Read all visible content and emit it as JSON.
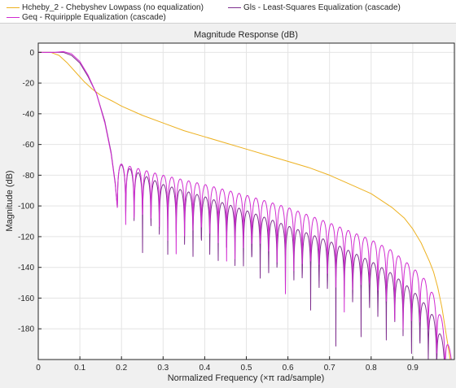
{
  "legend": {
    "items": [
      {
        "label": "Hcheby_2 - Chebyshev Lowpass (no equalization)",
        "color": "#EDB120"
      },
      {
        "label": "Gls - Least-Squares Equalization (cascade)",
        "color": "#7E2F8E"
      },
      {
        "label": "Geq - Rquiripple Equalization (cascade)",
        "color": "#D12BD1"
      }
    ]
  },
  "chart_data": {
    "type": "line",
    "title": "Magnitude Response (dB)",
    "xlabel": "Normalized Frequency (×π rad/sample)",
    "ylabel": "Magnitude (dB)",
    "xlim": [
      0,
      1
    ],
    "ylim": [
      -200,
      6
    ],
    "xticks": [
      "0",
      "0.1",
      "0.2",
      "0.3",
      "0.4",
      "0.5",
      "0.6",
      "0.7",
      "0.8",
      "0.9"
    ],
    "xtick_values": [
      0,
      0.1,
      0.2,
      0.3,
      0.4,
      0.5,
      0.6,
      0.7,
      0.8,
      0.9
    ],
    "yticks": [
      "0",
      "-20",
      "-40",
      "-60",
      "-80",
      "-100",
      "-120",
      "-140",
      "-160",
      "-180"
    ],
    "ytick_values": [
      0,
      -20,
      -40,
      -60,
      -80,
      -100,
      -120,
      -140,
      -160,
      -180
    ],
    "grid": true,
    "series": [
      {
        "name": "Hcheby_2 - Chebyshev Lowpass (no equalization)",
        "color": "#EDB120",
        "x": [
          0,
          0.03,
          0.05,
          0.07,
          0.09,
          0.11,
          0.13,
          0.15,
          0.18,
          0.2,
          0.25,
          0.3,
          0.35,
          0.4,
          0.45,
          0.5,
          0.55,
          0.6,
          0.65,
          0.7,
          0.75,
          0.8,
          0.85,
          0.88,
          0.9,
          0.92,
          0.94,
          0.95,
          0.96,
          0.97,
          0.98,
          0.99,
          0.995
        ],
        "y": [
          0,
          0,
          -2,
          -7,
          -13,
          -19,
          -24,
          -28,
          -32,
          -35,
          -41,
          -46,
          -51,
          -55,
          -59,
          -63,
          -67,
          -71,
          -75,
          -80,
          -86,
          -92,
          -101,
          -108,
          -115,
          -124,
          -136,
          -143,
          -153,
          -166,
          -183,
          -200,
          -200
        ]
      },
      {
        "name": "Gls - Least-Squares Equalization (cascade)",
        "color": "#7E2F8E",
        "x": [
          0,
          0.02,
          0.04,
          0.06,
          0.08,
          0.1,
          0.12,
          0.14,
          0.16,
          0.175,
          0.185,
          0.19
        ],
        "y": [
          0,
          0,
          0,
          0,
          -2,
          -7,
          -16,
          -27,
          -45,
          -65,
          -85,
          -101
        ],
        "stopband": {
          "x_start": 0.19,
          "x_end": 0.985,
          "null_spacing": 0.0202,
          "envelope": [
            [
              0.19,
              -72
            ],
            [
              0.3,
              -86
            ],
            [
              0.4,
              -94
            ],
            [
              0.5,
              -103
            ],
            [
              0.6,
              -113
            ],
            [
              0.7,
              -123
            ],
            [
              0.8,
              -136
            ],
            [
              0.85,
              -144
            ],
            [
              0.9,
              -155
            ],
            [
              0.93,
              -164
            ],
            [
              0.95,
              -172
            ],
            [
              0.97,
              -186
            ],
            [
              0.985,
              -200
            ]
          ],
          "null_floor": -200
        }
      },
      {
        "name": "Geq - Rquiripple Equalization (cascade)",
        "color": "#D12BD1",
        "x": [
          0,
          0.02,
          0.04,
          0.06,
          0.08,
          0.1,
          0.12,
          0.14,
          0.16,
          0.175,
          0.185,
          0.19
        ],
        "y": [
          0,
          0,
          0,
          0.5,
          -1,
          -6,
          -15,
          -27,
          -46,
          -66,
          -86,
          -101
        ],
        "stopband": {
          "x_start": 0.19,
          "x_end": 0.995,
          "null_spacing": 0.0202,
          "envelope": [
            [
              0.19,
              -72
            ],
            [
              0.3,
              -80
            ],
            [
              0.4,
              -86
            ],
            [
              0.5,
              -93
            ],
            [
              0.6,
              -101
            ],
            [
              0.7,
              -111
            ],
            [
              0.8,
              -122
            ],
            [
              0.85,
              -129
            ],
            [
              0.9,
              -140
            ],
            [
              0.93,
              -148
            ],
            [
              0.95,
              -158
            ],
            [
              0.97,
              -174
            ],
            [
              0.995,
              -200
            ]
          ],
          "null_floor": -200
        }
      }
    ]
  }
}
